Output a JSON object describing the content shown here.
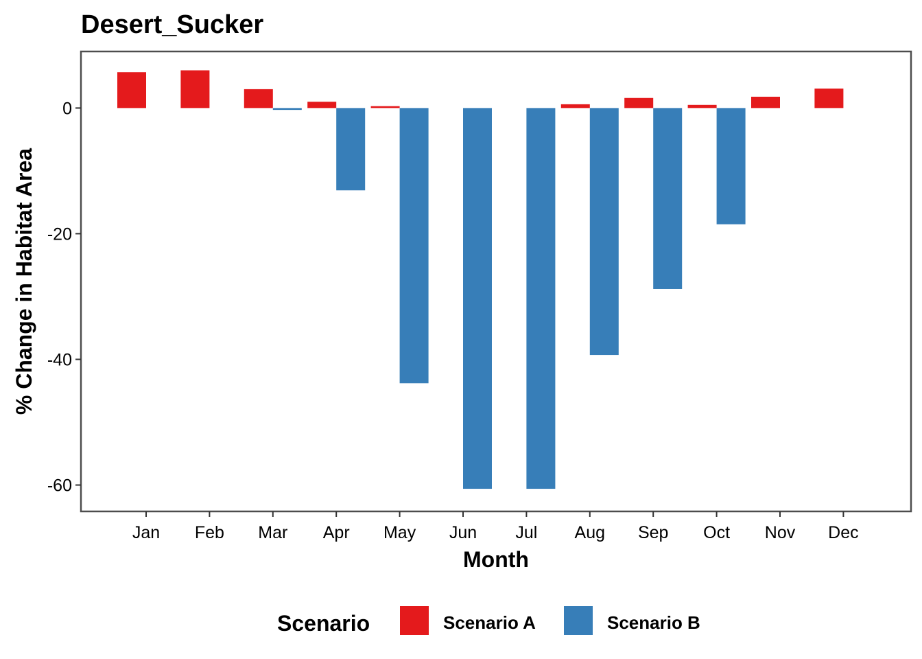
{
  "chart_data": {
    "type": "bar",
    "title": "Desert_Sucker",
    "xlabel": "Month",
    "ylabel": "% Change in Habitat Area",
    "categories": [
      "Jan",
      "Feb",
      "Mar",
      "Apr",
      "May",
      "Jun",
      "Jul",
      "Aug",
      "Sep",
      "Oct",
      "Nov",
      "Dec"
    ],
    "series": [
      {
        "name": "Scenario A",
        "color": "#E41A1C",
        "values": [
          5.7,
          6.0,
          3.0,
          1.0,
          0.3,
          0,
          0,
          0.6,
          1.6,
          0.5,
          1.8,
          3.1
        ]
      },
      {
        "name": "Scenario B",
        "color": "#377EB8",
        "values": [
          0,
          0,
          -0.3,
          -13.1,
          -43.8,
          -60.6,
          -60.6,
          -39.3,
          -28.8,
          -18.5,
          0,
          0
        ]
      }
    ],
    "ylim": [
      -64.2,
      9.0
    ],
    "yticks": [
      0,
      -20,
      -40,
      -60
    ],
    "grid": false,
    "legend": {
      "title": "Scenario",
      "position": "bottom"
    }
  }
}
